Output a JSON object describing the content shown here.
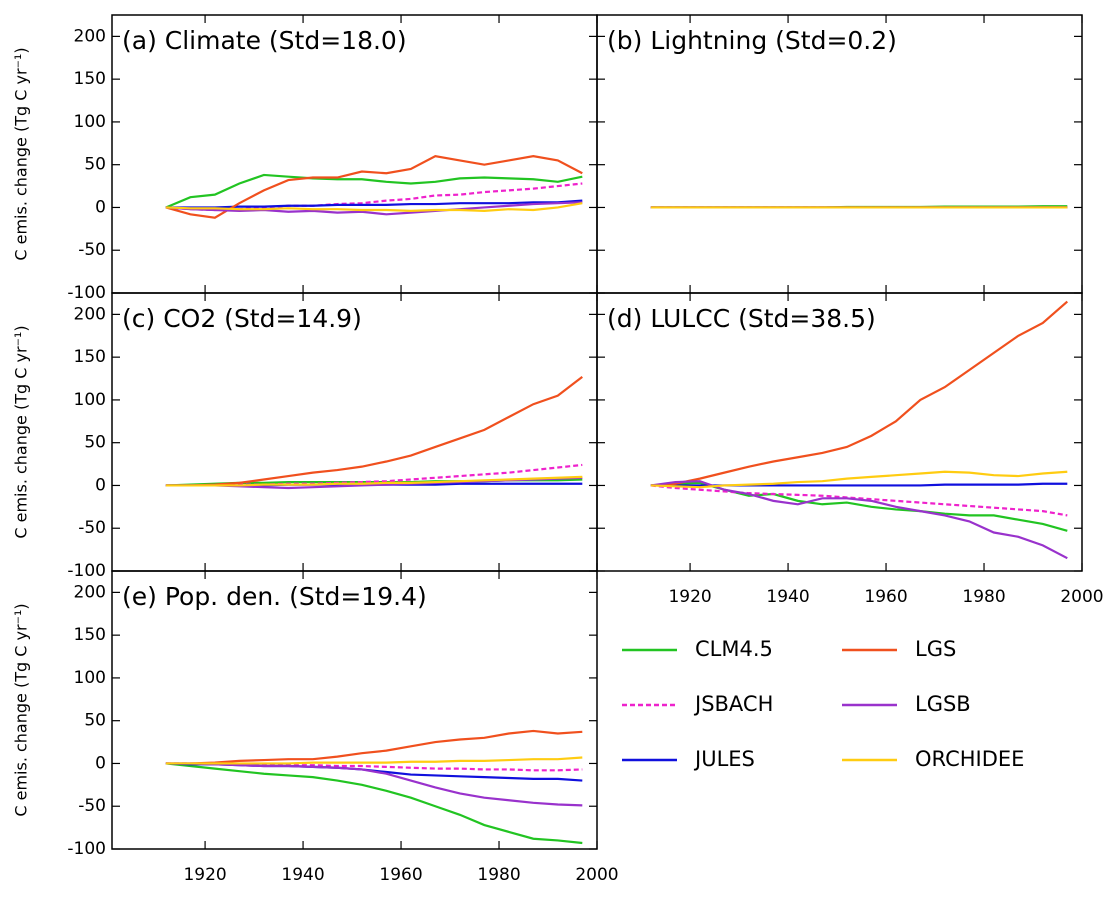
{
  "chart_data": [
    {
      "type": "line",
      "title": "(a) Climate (Std=18.0)",
      "y_label": "C emis. change (Tg C yr⁻¹)",
      "x": [
        1912,
        1917,
        1922,
        1927,
        1932,
        1937,
        1942,
        1947,
        1952,
        1957,
        1962,
        1967,
        1972,
        1977,
        1982,
        1987,
        1992,
        1997
      ],
      "xlim": [
        1901,
        2000
      ],
      "xticks": [
        1920,
        1940,
        1960,
        1980,
        2000
      ],
      "ylim": [
        -100,
        225
      ],
      "yticks": [
        -100,
        -50,
        0,
        50,
        100,
        150,
        200
      ],
      "series": [
        {
          "color": "#22c422",
          "style": "solid",
          "values": [
            0,
            12,
            15,
            28,
            38,
            36,
            34,
            33,
            33,
            30,
            28,
            30,
            34,
            35,
            34,
            33,
            30,
            36
          ]
        },
        {
          "color": "#ee22cc",
          "style": "dashed",
          "values": [
            0,
            -2,
            -3,
            -2,
            0,
            2,
            2,
            4,
            5,
            8,
            10,
            14,
            15,
            18,
            20,
            22,
            25,
            28
          ]
        },
        {
          "color": "#1010dd",
          "style": "solid",
          "values": [
            0,
            0,
            0,
            1,
            1,
            2,
            2,
            3,
            3,
            3,
            4,
            4,
            5,
            5,
            5,
            6,
            6,
            8
          ]
        },
        {
          "color": "#f0501e",
          "style": "solid",
          "values": [
            0,
            -8,
            -12,
            5,
            20,
            32,
            35,
            35,
            42,
            40,
            45,
            60,
            55,
            50,
            55,
            60,
            55,
            40
          ]
        },
        {
          "color": "#9932cc",
          "style": "solid",
          "values": [
            0,
            -2,
            -3,
            -4,
            -3,
            -5,
            -4,
            -6,
            -5,
            -8,
            -6,
            -4,
            -2,
            0,
            2,
            4,
            5,
            6
          ]
        },
        {
          "color": "#ffcc11",
          "style": "solid",
          "values": [
            0,
            -1,
            -1,
            -2,
            -2,
            -1,
            -2,
            -2,
            -3,
            -3,
            -4,
            -3,
            -3,
            -4,
            -2,
            -3,
            0,
            5
          ]
        }
      ]
    },
    {
      "type": "line",
      "title": "(b) Lightning (Std=0.2)",
      "x": [
        1912,
        1917,
        1922,
        1927,
        1932,
        1937,
        1942,
        1947,
        1952,
        1957,
        1962,
        1967,
        1972,
        1977,
        1982,
        1987,
        1992,
        1997
      ],
      "xlim": [
        1901,
        2000
      ],
      "xticks": [
        1920,
        1940,
        1960,
        1980,
        2000
      ],
      "ylim": [
        -100,
        225
      ],
      "yticks": [
        -100,
        -50,
        0,
        50,
        100,
        150,
        200
      ],
      "series": [
        {
          "color": "#22c422",
          "style": "solid",
          "values": [
            0,
            0,
            0,
            0,
            0,
            0,
            0,
            0,
            0.5,
            0.5,
            0.5,
            0.5,
            1,
            1,
            1,
            1,
            1.5,
            1.5
          ]
        },
        {
          "color": "#ee22cc",
          "style": "dashed",
          "values": [
            0,
            0,
            0,
            0,
            0,
            0,
            0,
            0,
            0,
            0,
            0,
            0,
            0,
            0,
            0,
            0,
            0,
            0
          ]
        },
        {
          "color": "#1010dd",
          "style": "solid",
          "values": [
            0,
            0,
            0,
            0,
            0,
            0,
            0,
            0,
            0,
            0,
            0,
            0,
            0,
            0,
            0,
            0,
            0,
            0
          ]
        },
        {
          "color": "#f0501e",
          "style": "solid",
          "values": [
            0,
            0,
            0,
            0,
            0,
            0,
            0,
            0,
            0,
            0,
            0,
            0,
            0,
            0,
            0,
            0,
            0,
            0
          ]
        },
        {
          "color": "#9932cc",
          "style": "solid",
          "values": [
            0,
            0,
            0,
            0,
            0,
            0,
            0,
            0,
            0,
            0,
            0,
            0,
            0,
            0,
            0,
            0,
            0,
            0
          ]
        },
        {
          "color": "#ffcc11",
          "style": "solid",
          "values": [
            0,
            0,
            0,
            0,
            0,
            0,
            0,
            0,
            0,
            0,
            0,
            0,
            0,
            0,
            0,
            0,
            0,
            0
          ]
        }
      ]
    },
    {
      "type": "line",
      "title": "(c) CO2 (Std=14.9)",
      "y_label": "C emis. change (Tg C yr⁻¹)",
      "x": [
        1912,
        1917,
        1922,
        1927,
        1932,
        1937,
        1942,
        1947,
        1952,
        1957,
        1962,
        1967,
        1972,
        1977,
        1982,
        1987,
        1992,
        1997
      ],
      "xlim": [
        1901,
        2000
      ],
      "xticks": [
        1920,
        1940,
        1960,
        1980,
        2000
      ],
      "ylim": [
        -100,
        225
      ],
      "yticks": [
        -100,
        -50,
        0,
        50,
        100,
        150,
        200
      ],
      "series": [
        {
          "color": "#22c422",
          "style": "solid",
          "values": [
            0,
            1,
            2,
            3,
            3,
            4,
            4,
            4,
            4,
            4,
            4,
            5,
            5,
            5,
            6,
            6,
            6,
            7
          ]
        },
        {
          "color": "#ee22cc",
          "style": "dashed",
          "values": [
            0,
            0,
            0,
            1,
            1,
            2,
            2,
            3,
            4,
            5,
            7,
            9,
            11,
            13,
            15,
            18,
            21,
            24
          ]
        },
        {
          "color": "#1010dd",
          "style": "solid",
          "values": [
            0,
            0,
            0,
            0,
            0,
            1,
            1,
            1,
            1,
            1,
            1,
            1,
            2,
            2,
            2,
            2,
            2,
            2
          ]
        },
        {
          "color": "#f0501e",
          "style": "solid",
          "values": [
            0,
            0,
            1,
            3,
            7,
            11,
            15,
            18,
            22,
            28,
            35,
            45,
            55,
            65,
            80,
            95,
            105,
            127
          ]
        },
        {
          "color": "#9932cc",
          "style": "solid",
          "values": [
            0,
            0,
            0,
            -1,
            -2,
            -3,
            -2,
            -1,
            0,
            1,
            2,
            3,
            4,
            5,
            6,
            7,
            8,
            9
          ]
        },
        {
          "color": "#ffcc11",
          "style": "solid",
          "values": [
            0,
            0,
            0,
            0,
            1,
            1,
            1,
            2,
            2,
            3,
            3,
            4,
            5,
            6,
            7,
            8,
            9,
            10
          ]
        }
      ]
    },
    {
      "type": "line",
      "title": "(d) LULCC (Std=38.5)",
      "x": [
        1912,
        1917,
        1922,
        1927,
        1932,
        1937,
        1942,
        1947,
        1952,
        1957,
        1962,
        1967,
        1972,
        1977,
        1982,
        1987,
        1992,
        1997
      ],
      "xlim": [
        1901,
        2000
      ],
      "xticks": [
        1920,
        1940,
        1960,
        1980,
        2000
      ],
      "ylim": [
        -100,
        225
      ],
      "yticks": [
        -100,
        -50,
        0,
        50,
        100,
        150,
        200
      ],
      "series": [
        {
          "color": "#22c422",
          "style": "solid",
          "values": [
            0,
            2,
            3,
            -5,
            -12,
            -10,
            -18,
            -22,
            -20,
            -25,
            -28,
            -30,
            -33,
            -35,
            -35,
            -40,
            -45,
            -53
          ]
        },
        {
          "color": "#ee22cc",
          "style": "dashed",
          "values": [
            0,
            -3,
            -5,
            -7,
            -9,
            -10,
            -11,
            -12,
            -14,
            -16,
            -18,
            -20,
            -22,
            -24,
            -26,
            -28,
            -30,
            -35
          ]
        },
        {
          "color": "#1010dd",
          "style": "solid",
          "values": [
            0,
            0,
            0,
            0,
            0,
            0,
            0,
            0,
            0,
            0,
            0,
            0,
            1,
            1,
            1,
            1,
            2,
            2
          ]
        },
        {
          "color": "#f0501e",
          "style": "solid",
          "values": [
            0,
            2,
            8,
            15,
            22,
            28,
            33,
            38,
            45,
            58,
            75,
            100,
            115,
            135,
            155,
            175,
            190,
            215
          ]
        },
        {
          "color": "#9932cc",
          "style": "solid",
          "values": [
            0,
            4,
            5,
            -5,
            -10,
            -18,
            -22,
            -15,
            -15,
            -18,
            -25,
            -30,
            -35,
            -42,
            -55,
            -60,
            -70,
            -85
          ]
        },
        {
          "color": "#ffcc11",
          "style": "solid",
          "values": [
            0,
            -1,
            -2,
            0,
            1,
            2,
            4,
            5,
            8,
            10,
            12,
            14,
            16,
            15,
            12,
            11,
            14,
            16
          ]
        }
      ]
    },
    {
      "type": "line",
      "title": "(e) Pop. den. (Std=19.4)",
      "y_label": "C emis. change (Tg C yr⁻¹)",
      "x": [
        1912,
        1917,
        1922,
        1927,
        1932,
        1937,
        1942,
        1947,
        1952,
        1957,
        1962,
        1967,
        1972,
        1977,
        1982,
        1987,
        1992,
        1997
      ],
      "xlim": [
        1901,
        2000
      ],
      "xticks": [
        1920,
        1940,
        1960,
        1980,
        2000
      ],
      "ylim": [
        -100,
        225
      ],
      "yticks": [
        -100,
        -50,
        0,
        50,
        100,
        150,
        200
      ],
      "series": [
        {
          "name": "CLM4.5",
          "color": "#22c422",
          "style": "solid",
          "values": [
            0,
            -3,
            -6,
            -9,
            -12,
            -14,
            -16,
            -20,
            -25,
            -32,
            -40,
            -50,
            -60,
            -72,
            -80,
            -88,
            -90,
            -93
          ]
        },
        {
          "name": "JSBACH",
          "color": "#ee22cc",
          "style": "dashed",
          "values": [
            0,
            0,
            0,
            -1,
            -1,
            -2,
            -2,
            -3,
            -3,
            -4,
            -5,
            -6,
            -6,
            -7,
            -7,
            -8,
            -8,
            -7
          ]
        },
        {
          "name": "JULES",
          "color": "#1010dd",
          "style": "solid",
          "values": [
            0,
            -1,
            -1,
            -2,
            -3,
            -3,
            -4,
            -5,
            -7,
            -10,
            -13,
            -14,
            -15,
            -16,
            -17,
            -18,
            -18,
            -20
          ]
        },
        {
          "name": "LGS",
          "color": "#f0501e",
          "style": "solid",
          "values": [
            0,
            0,
            1,
            3,
            4,
            5,
            5,
            8,
            12,
            15,
            20,
            25,
            28,
            30,
            35,
            38,
            35,
            37
          ]
        },
        {
          "name": "LGSB",
          "color": "#9932cc",
          "style": "solid",
          "values": [
            0,
            0,
            -1,
            -2,
            -3,
            -3,
            -4,
            -5,
            -7,
            -12,
            -20,
            -28,
            -35,
            -40,
            -43,
            -46,
            -48,
            -49
          ]
        },
        {
          "name": "ORCHIDEE",
          "color": "#ffcc11",
          "style": "solid",
          "values": [
            0,
            0,
            0,
            0,
            0,
            0,
            1,
            1,
            1,
            1,
            2,
            2,
            3,
            3,
            4,
            5,
            5,
            7
          ]
        }
      ]
    }
  ]
}
